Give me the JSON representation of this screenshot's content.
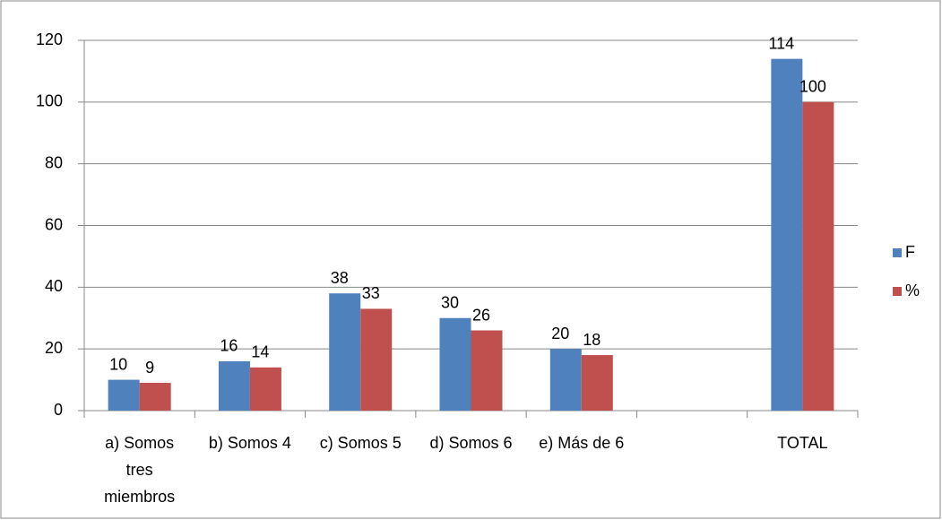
{
  "chart_data": {
    "type": "bar",
    "categories": [
      "a) Somos tres miembros",
      "b) Somos 4",
      "c) Somos 5",
      "d) Somos 6",
      "e) Más de 6",
      null,
      "TOTAL"
    ],
    "series": [
      {
        "name": "F",
        "color": "#4f81bd",
        "values": [
          10,
          16,
          38,
          30,
          20,
          null,
          114
        ]
      },
      {
        "name": "%",
        "color": "#c0504d",
        "values": [
          9,
          14,
          33,
          26,
          18,
          null,
          100
        ]
      }
    ],
    "ylim": [
      0,
      120
    ],
    "yticks": [
      0,
      20,
      40,
      60,
      80,
      100,
      120
    ],
    "grid": true,
    "legend": "right"
  }
}
